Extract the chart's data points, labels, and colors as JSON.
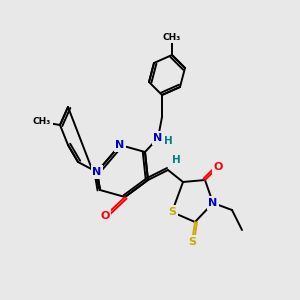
{
  "bg_color": "#e8e8e8",
  "atom_colors": {
    "N": "#0000cc",
    "O": "#ff0000",
    "S": "#ccaa00",
    "H": "#008080"
  },
  "bond_lw": 1.4
}
